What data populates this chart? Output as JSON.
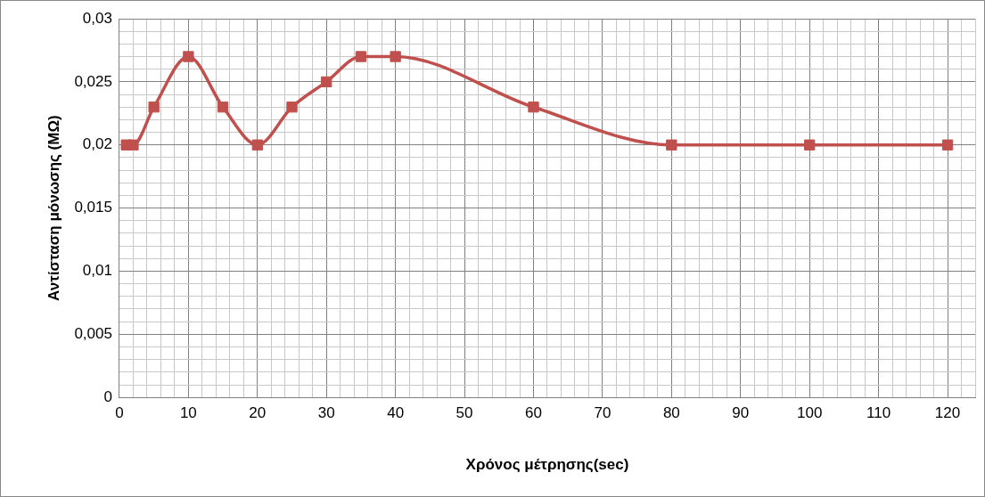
{
  "chart_data": {
    "type": "line",
    "xlabel": "Χρόνος μέτρησης(sec)",
    "ylabel": "Αντίσταση μόνωσης (ΜΩ)",
    "x": [
      1,
      2,
      5,
      10,
      15,
      20,
      25,
      30,
      35,
      40,
      60,
      80,
      100,
      120
    ],
    "series": [
      {
        "color": "#c0504d",
        "values": [
          0.02,
          0.02,
          0.023,
          0.027,
          0.023,
          0.02,
          0.023,
          0.025,
          0.027,
          0.027,
          0.023,
          0.02,
          0.02,
          0.02
        ]
      }
    ],
    "xlim": [
      0,
      124
    ],
    "xticks": [
      0,
      {
        "value": 2,
        "label": null
      },
      {
        "value": 4,
        "label": null
      },
      {
        "value": 6,
        "label": null
      },
      {
        "value": 8,
        "label": null
      },
      10,
      {
        "value": 12,
        "label": null
      },
      {
        "value": 14,
        "label": null
      },
      {
        "value": 16,
        "label": null
      },
      {
        "value": 18,
        "label": null
      },
      20,
      {
        "value": 22,
        "label": null
      },
      {
        "value": 24,
        "label": null
      },
      {
        "value": 26,
        "label": null
      },
      {
        "value": 28,
        "label": null
      },
      30,
      {
        "value": 32,
        "label": null
      },
      {
        "value": 34,
        "label": null
      },
      {
        "value": 36,
        "label": null
      },
      {
        "value": 38,
        "label": null
      },
      40,
      {
        "value": 42,
        "label": null
      },
      {
        "value": 44,
        "label": null
      },
      {
        "value": 46,
        "label": null
      },
      {
        "value": 48,
        "label": null
      },
      50,
      {
        "value": 52,
        "label": null
      },
      {
        "value": 54,
        "label": null
      },
      {
        "value": 56,
        "label": null
      },
      {
        "value": 58,
        "label": null
      },
      60,
      {
        "value": 62,
        "label": null
      },
      {
        "value": 64,
        "label": null
      },
      {
        "value": 66,
        "label": null
      },
      {
        "value": 68,
        "label": null
      },
      70,
      {
        "value": 72,
        "label": null
      },
      {
        "value": 74,
        "label": null
      },
      {
        "value": 76,
        "label": null
      },
      {
        "value": 78,
        "label": null
      },
      80,
      {
        "value": 82,
        "label": null
      },
      {
        "value": 84,
        "label": null
      },
      {
        "value": 86,
        "label": null
      },
      {
        "value": 88,
        "label": null
      },
      90,
      {
        "value": 92,
        "label": null
      },
      {
        "value": 94,
        "label": null
      },
      {
        "value": 96,
        "label": null
      },
      {
        "value": 98,
        "label": null
      },
      100,
      {
        "value": 102,
        "label": null
      },
      {
        "value": 104,
        "label": null
      },
      {
        "value": 106,
        "label": null
      },
      {
        "value": 108,
        "label": null
      },
      110,
      {
        "value": 112,
        "label": null
      },
      {
        "value": 114,
        "label": null
      },
      {
        "value": 116,
        "label": null
      },
      {
        "value": 118,
        "label": null
      },
      120,
      {
        "value": 122,
        "label": null
      },
      {
        "value": 124,
        "label": null
      }
    ],
    "ylim": [
      0,
      0.03
    ],
    "yticks": [
      0,
      {
        "value": 0.001,
        "label": null
      },
      {
        "value": 0.002,
        "label": null
      },
      {
        "value": 0.003,
        "label": null
      },
      {
        "value": 0.004,
        "label": null
      },
      {
        "value": 0.005,
        "label": "0,005"
      },
      {
        "value": 0.006,
        "label": null
      },
      {
        "value": 0.007,
        "label": null
      },
      {
        "value": 0.008,
        "label": null
      },
      {
        "value": 0.009,
        "label": null
      },
      {
        "value": 0.01,
        "label": "0,01"
      },
      {
        "value": 0.011,
        "label": null
      },
      {
        "value": 0.012,
        "label": null
      },
      {
        "value": 0.013,
        "label": null
      },
      {
        "value": 0.014,
        "label": null
      },
      {
        "value": 0.015,
        "label": "0,015"
      },
      {
        "value": 0.016,
        "label": null
      },
      {
        "value": 0.017,
        "label": null
      },
      {
        "value": 0.018,
        "label": null
      },
      {
        "value": 0.019,
        "label": null
      },
      {
        "value": 0.02,
        "label": "0,02"
      },
      {
        "value": 0.021,
        "label": null
      },
      {
        "value": 0.022,
        "label": null
      },
      {
        "value": 0.023,
        "label": null
      },
      {
        "value": 0.024,
        "label": null
      },
      {
        "value": 0.025,
        "label": "0,025"
      },
      {
        "value": 0.026,
        "label": null
      },
      {
        "value": 0.027,
        "label": null
      },
      {
        "value": 0.028,
        "label": null
      },
      {
        "value": 0.029,
        "label": null
      },
      {
        "value": 0.03,
        "label": "0,03"
      }
    ],
    "grid": true,
    "marker": "square",
    "line_style": "solid",
    "legend": false
  }
}
